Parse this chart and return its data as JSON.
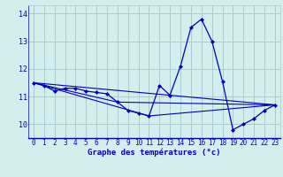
{
  "title": "Graphe des températures (°c)",
  "bg_color": "#d4eeee",
  "grid_color": "#aacccc",
  "line_color": "#0000bb",
  "xlim": [
    -0.5,
    23.5
  ],
  "ylim": [
    9.5,
    14.3
  ],
  "yticks": [
    10,
    11,
    12,
    13,
    14
  ],
  "xticks": [
    0,
    1,
    2,
    3,
    4,
    5,
    6,
    7,
    8,
    9,
    10,
    11,
    12,
    13,
    14,
    15,
    16,
    17,
    18,
    19,
    20,
    21,
    22,
    23
  ],
  "series1_x": [
    0,
    1,
    2,
    3,
    4,
    5,
    6,
    7,
    8,
    9,
    10,
    11,
    12,
    13,
    14,
    15,
    16,
    17,
    18,
    19,
    20,
    21,
    22,
    23
  ],
  "series1_y": [
    11.5,
    11.4,
    11.2,
    11.3,
    11.3,
    11.2,
    11.15,
    11.1,
    10.8,
    10.5,
    10.4,
    10.3,
    11.4,
    11.05,
    12.1,
    13.5,
    13.8,
    13.0,
    11.55,
    9.8,
    10.0,
    10.2,
    10.5,
    10.7
  ],
  "series2_x": [
    0,
    23
  ],
  "series2_y": [
    11.5,
    10.7
  ],
  "series3_x": [
    0,
    11,
    23
  ],
  "series3_y": [
    11.5,
    10.3,
    10.7
  ],
  "series4_x": [
    0,
    8,
    23
  ],
  "series4_y": [
    11.5,
    10.8,
    10.7
  ]
}
